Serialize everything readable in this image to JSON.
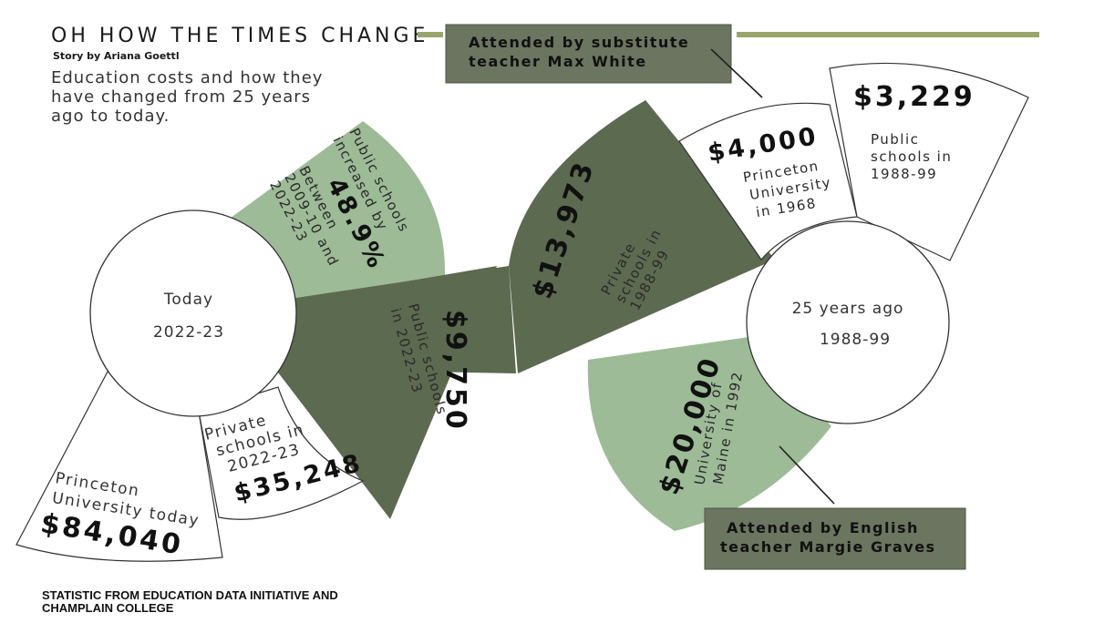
{
  "header": {
    "title": "OH HOW THE TIMES CHANGE",
    "byline": "Story by Ariana Goettl",
    "subtitle_lines": [
      "Education costs and how they",
      "have changed from 25 years",
      "ago to today."
    ]
  },
  "colors": {
    "dark_green": "#5c6a50",
    "light_green": "#9cbb96",
    "olive_rule": "#9aa56a",
    "outline": "#333333"
  },
  "today_circle": {
    "label": "Today",
    "year": "2022-23"
  },
  "past_circle": {
    "label": "25 years ago",
    "year": "1988-99"
  },
  "sectors": {
    "public_increase": {
      "value": "48.9%",
      "lines": [
        "Public schools",
        "increased by",
        "Between",
        "2009-10 and",
        "2022-23"
      ]
    },
    "public_today": {
      "value": "$9,750",
      "lines": [
        "Public schools",
        "in 2022-23"
      ]
    },
    "private_past": {
      "value": "$13,973",
      "lines": [
        "Private",
        "schools in",
        "1988-99"
      ]
    },
    "private_today": {
      "value": "$35,248",
      "lines": [
        "Private",
        "schools in",
        "2022-23"
      ]
    },
    "princeton_today": {
      "value": "$84,040",
      "lines": [
        "Princeton",
        "University today"
      ]
    },
    "princeton_1968": {
      "value": "$4,000",
      "lines": [
        "Princeton",
        "University",
        "in 1968"
      ]
    },
    "public_past": {
      "value": "$3,229",
      "lines": [
        "Public",
        "schools in",
        "1988-99"
      ]
    },
    "maine_1992": {
      "value": "$20,000",
      "lines": [
        "University of",
        "Maine in 1992"
      ]
    }
  },
  "callouts": {
    "max_white": [
      "Attended by substitute",
      "teacher Max White"
    ],
    "margie_graves": [
      "Attended by English",
      "teacher Margie Graves"
    ]
  },
  "source_lines": [
    "STATISTIC FROM EDUCATION DATA INITIATIVE AND",
    "CHAMPLAIN COLLEGE"
  ]
}
